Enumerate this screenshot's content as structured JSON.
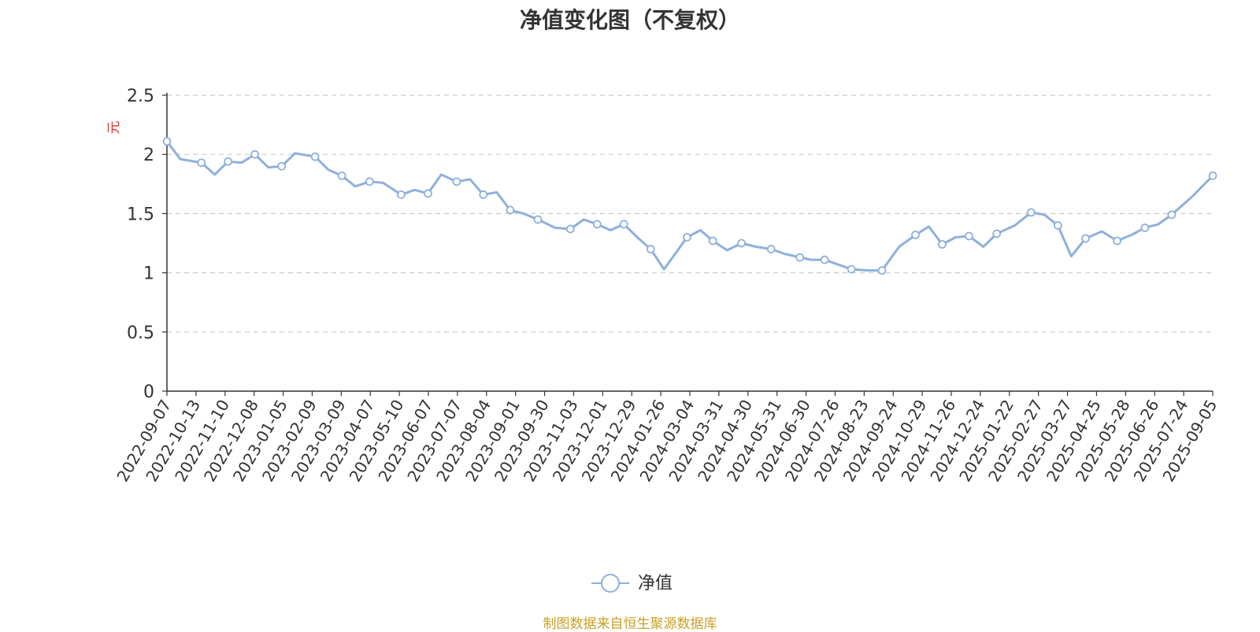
{
  "chart_data": {
    "type": "line",
    "title": "净值变化图（不复权）",
    "ylabel": "元",
    "ylim": [
      0,
      2.5
    ],
    "yticks": [
      "0",
      "0.5",
      "1",
      "1.5",
      "2",
      "2.5"
    ],
    "grid": "horizontal-dashed",
    "legend_position": "bottom-center",
    "x_tick_labels": [
      "2022-09-07",
      "2022-10-13",
      "2022-11-10",
      "2022-12-08",
      "2023-01-05",
      "2023-02-09",
      "2023-03-09",
      "2023-04-07",
      "2023-05-10",
      "2023-06-07",
      "2023-07-07",
      "2023-08-04",
      "2023-09-01",
      "2023-09-30",
      "2023-11-03",
      "2023-12-01",
      "2023-12-29",
      "2024-01-26",
      "2024-03-04",
      "2024-03-31",
      "2024-04-30",
      "2024-05-31",
      "2024-06-30",
      "2024-07-26",
      "2024-08-23",
      "2024-09-24",
      "2024-10-29",
      "2024-11-26",
      "2024-12-24",
      "2025-01-22",
      "2025-02-27",
      "2025-03-27",
      "2025-04-25",
      "2025-05-28",
      "2025-06-26",
      "2025-07-24",
      "2025-09-05"
    ],
    "series": [
      {
        "name": "净值",
        "color": "#8eb0dc",
        "x": [
          "2022-09-07",
          "2022-09-21",
          "2022-10-13",
          "2022-10-27",
          "2022-11-10",
          "2022-11-24",
          "2022-12-08",
          "2022-12-22",
          "2023-01-05",
          "2023-01-19",
          "2023-02-09",
          "2023-02-23",
          "2023-03-09",
          "2023-03-23",
          "2023-04-07",
          "2023-04-21",
          "2023-05-10",
          "2023-05-24",
          "2023-06-07",
          "2023-06-21",
          "2023-07-07",
          "2023-07-21",
          "2023-08-04",
          "2023-08-18",
          "2023-09-01",
          "2023-09-15",
          "2023-09-30",
          "2023-10-18",
          "2023-11-03",
          "2023-11-17",
          "2023-12-01",
          "2023-12-15",
          "2023-12-29",
          "2024-01-12",
          "2024-01-26",
          "2024-02-09",
          "2024-03-04",
          "2024-03-18",
          "2024-03-31",
          "2024-04-15",
          "2024-04-30",
          "2024-05-15",
          "2024-05-31",
          "2024-06-14",
          "2024-06-30",
          "2024-07-12",
          "2024-07-26",
          "2024-08-09",
          "2024-08-23",
          "2024-09-09",
          "2024-09-24",
          "2024-10-12",
          "2024-10-29",
          "2024-11-12",
          "2024-11-26",
          "2024-12-10",
          "2024-12-24",
          "2025-01-08",
          "2025-01-22",
          "2025-02-10",
          "2025-02-27",
          "2025-03-13",
          "2025-03-27",
          "2025-04-10",
          "2025-04-25",
          "2025-05-12",
          "2025-05-28",
          "2025-06-12",
          "2025-06-26",
          "2025-07-10",
          "2025-07-24",
          "2025-08-14",
          "2025-09-05"
        ],
        "values": [
          2.11,
          1.96,
          1.93,
          1.83,
          1.94,
          1.93,
          2.0,
          1.89,
          1.9,
          2.01,
          1.98,
          1.87,
          1.82,
          1.73,
          1.77,
          1.76,
          1.66,
          1.7,
          1.67,
          1.83,
          1.77,
          1.79,
          1.66,
          1.68,
          1.53,
          1.5,
          1.45,
          1.38,
          1.37,
          1.45,
          1.41,
          1.36,
          1.41,
          1.3,
          1.2,
          1.03,
          1.3,
          1.36,
          1.27,
          1.19,
          1.25,
          1.22,
          1.2,
          1.16,
          1.13,
          1.11,
          1.11,
          1.07,
          1.03,
          1.02,
          1.02,
          1.22,
          1.32,
          1.39,
          1.24,
          1.3,
          1.31,
          1.22,
          1.33,
          1.4,
          1.51,
          1.49,
          1.4,
          1.14,
          1.29,
          1.35,
          1.27,
          1.32,
          1.38,
          1.41,
          1.49,
          1.64,
          1.82
        ]
      }
    ]
  },
  "legend": {
    "label": "净值"
  },
  "source_note": "制图数据来自恒生聚源数据库"
}
